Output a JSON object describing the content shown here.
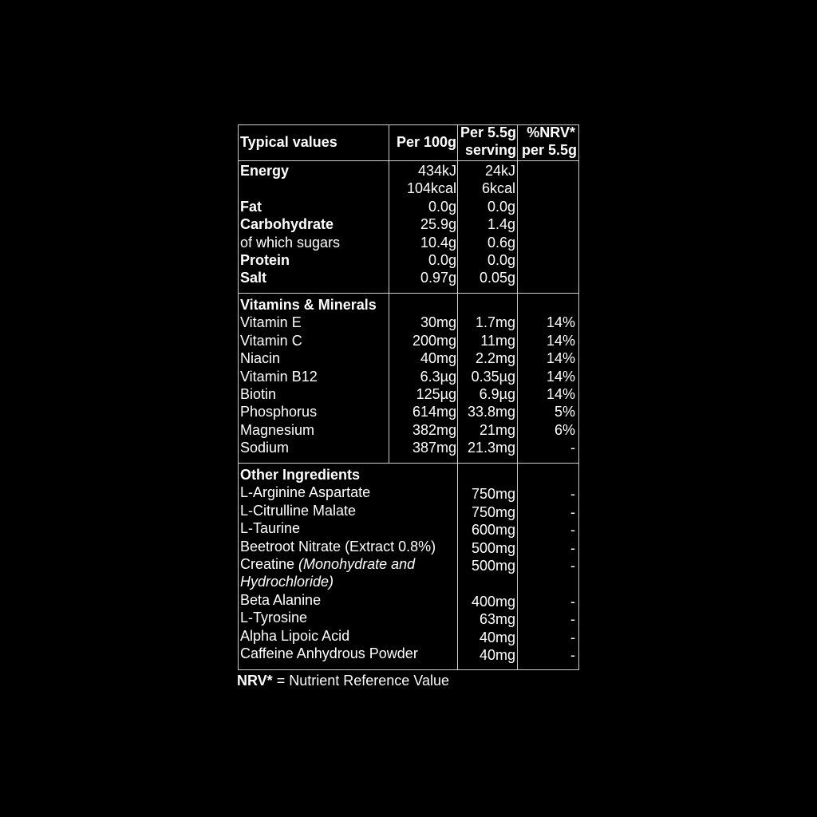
{
  "header": {
    "col1": "Typical values",
    "col2": "Per 100g",
    "col3_line1": "Per 5.5g",
    "col3_line2": "serving",
    "col4_line1": "%NRV*",
    "col4_line2": "per 5.5g"
  },
  "nutrition": [
    {
      "label": "Energy",
      "bold": true,
      "per100": "434kJ",
      "perServing": "24kJ",
      "nrv": ""
    },
    {
      "label": "",
      "bold": false,
      "per100": "104kcal",
      "perServing": "6kcal",
      "nrv": ""
    },
    {
      "label": "Fat",
      "bold": true,
      "per100": "0.0g",
      "perServing": "0.0g",
      "nrv": ""
    },
    {
      "label": "Carbohydrate",
      "bold": true,
      "per100": "25.9g",
      "perServing": "1.4g",
      "nrv": ""
    },
    {
      "label": "of which sugars",
      "bold": false,
      "per100": "10.4g",
      "perServing": "0.6g",
      "nrv": ""
    },
    {
      "label": "Protein",
      "bold": true,
      "per100": "0.0g",
      "perServing": "0.0g",
      "nrv": ""
    },
    {
      "label": "Salt",
      "bold": true,
      "per100": "0.97g",
      "perServing": "0.05g",
      "nrv": ""
    }
  ],
  "vitamins": {
    "title": "Vitamins & Minerals",
    "rows": [
      {
        "label": "Vitamin E",
        "per100": "30mg",
        "perServing": "1.7mg",
        "nrv": "14%"
      },
      {
        "label": "Vitamin C",
        "per100": "200mg",
        "perServing": "11mg",
        "nrv": "14%"
      },
      {
        "label": "Niacin",
        "per100": "40mg",
        "perServing": "2.2mg",
        "nrv": "14%"
      },
      {
        "label": "Vitamin B12",
        "per100": "6.3µg",
        "perServing": "0.35µg",
        "nrv": "14%"
      },
      {
        "label": "Biotin",
        "per100": "125µg",
        "perServing": "6.9µg",
        "nrv": "14%"
      },
      {
        "label": "Phosphorus",
        "per100": "614mg",
        "perServing": "33.8mg",
        "nrv": "5%"
      },
      {
        "label": "Magnesium",
        "per100": "382mg",
        "perServing": "21mg",
        "nrv": "6%"
      },
      {
        "label": "Sodium",
        "per100": "387mg",
        "perServing": "21.3mg",
        "nrv": "-"
      }
    ]
  },
  "other": {
    "title": "Other Ingredients",
    "rows": [
      {
        "label": "L-Arginine Aspartate",
        "perServing": "750mg",
        "nrv": "-"
      },
      {
        "label": "L-Citrulline Malate",
        "perServing": "750mg",
        "nrv": "-"
      },
      {
        "label": "L-Taurine",
        "perServing": "600mg",
        "nrv": "-"
      },
      {
        "label": "Beetroot Nitrate (Extract 0.8%)",
        "perServing": "500mg",
        "nrv": "-"
      },
      {
        "label": "Creatine",
        "label_italic": "(Monohydrate and",
        "perServing": "500mg",
        "nrv": "-"
      },
      {
        "label": "",
        "label_italic": "Hydrochloride)",
        "perServing": "",
        "nrv": ""
      },
      {
        "label": "Beta Alanine",
        "perServing": "400mg",
        "nrv": "-"
      },
      {
        "label": "L-Tyrosine",
        "perServing": "63mg",
        "nrv": "-"
      },
      {
        "label": "Alpha Lipoic Acid",
        "perServing": "40mg",
        "nrv": "-"
      },
      {
        "label": "Caffeine Anhydrous Powder",
        "perServing": "40mg",
        "nrv": "-"
      }
    ]
  },
  "footer": {
    "bold": "NRV*",
    "text": " = Nutrient Reference Value"
  }
}
